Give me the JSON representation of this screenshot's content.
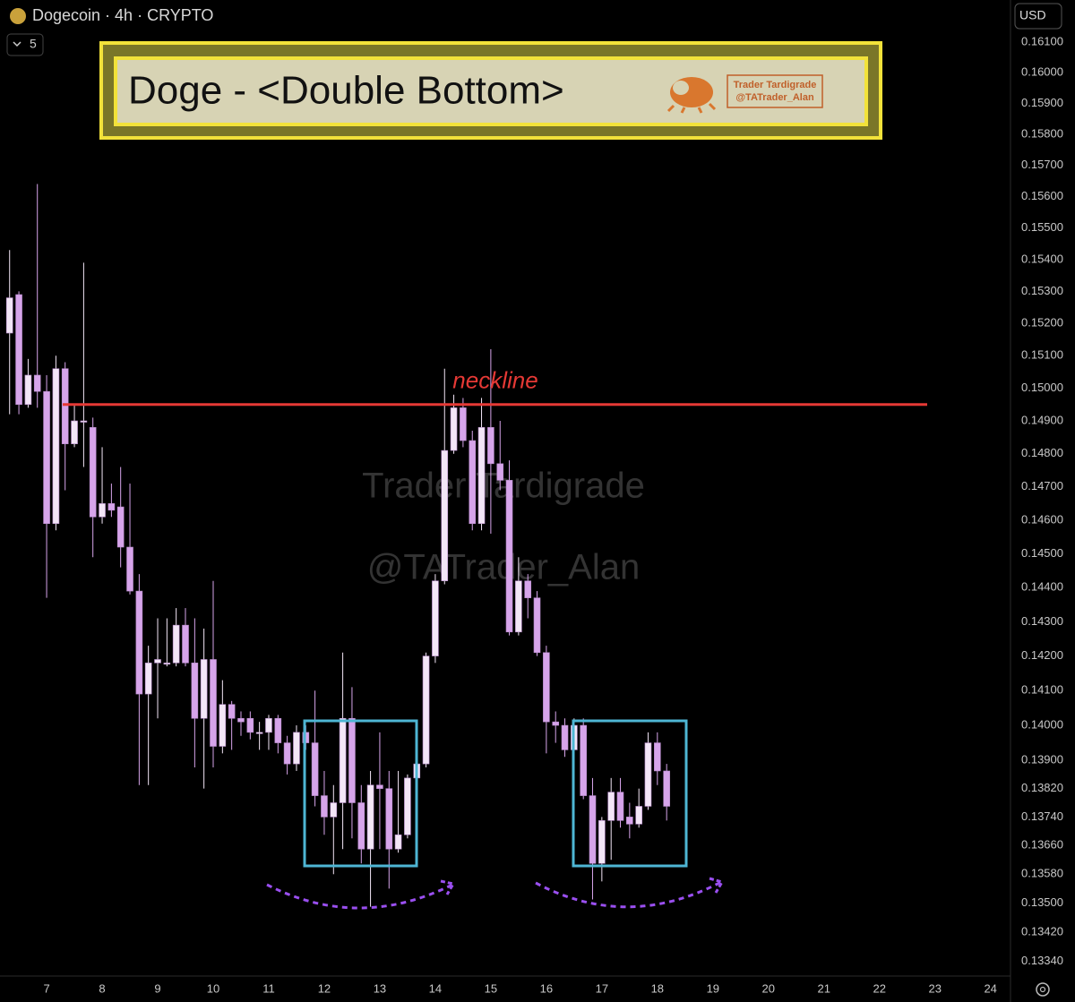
{
  "toolbar": {
    "symbol_line": "Dogecoin · 4h · CRYPTO",
    "indicators": 5,
    "currency": "USD"
  },
  "chart_data": {
    "type": "candlestick",
    "title": "Doge - <Double Bottom>",
    "watermark": [
      "Trader Tardigrade",
      "@TATrader_Alan"
    ],
    "annotations": [
      {
        "text": "neckline",
        "value": 0.1495,
        "color": "#e53935"
      }
    ],
    "log_scale": true,
    "grid": false,
    "up_color": "#f3e6f7",
    "down_color": "#d6a4ea",
    "x": [
      6.333,
      6.5,
      6.667,
      6.833,
      7,
      7.167,
      7.333,
      7.5,
      7.667,
      7.833,
      8,
      8.167,
      8.333,
      8.5,
      8.667,
      8.833,
      9,
      9.167,
      9.333,
      9.5,
      9.667,
      9.833,
      10,
      10.167,
      10.333,
      10.5,
      10.667,
      10.833,
      11,
      11.167,
      11.333,
      11.5,
      11.667,
      11.833,
      12,
      12.167,
      12.333,
      12.5,
      12.667,
      12.833,
      13,
      13.167,
      13.333,
      13.5,
      13.667,
      13.833,
      14,
      14.167,
      14.333,
      14.5,
      14.667,
      14.833,
      15,
      15.167,
      15.333,
      15.5,
      15.667,
      15.833,
      16,
      16.167,
      16.333,
      16.5,
      16.667,
      16.833,
      17,
      17.167,
      17.333,
      17.5,
      17.667,
      17.833,
      18,
      18.167
    ],
    "open": [
      0.1517,
      0.1529,
      0.1495,
      0.1504,
      0.1499,
      0.1459,
      0.1506,
      0.1483,
      0.149,
      0.1488,
      0.1461,
      0.1465,
      0.1464,
      0.1452,
      0.1439,
      0.1409,
      0.1418,
      0.1418,
      0.1418,
      0.1429,
      0.1418,
      0.1402,
      0.1419,
      0.1394,
      0.1406,
      0.1402,
      0.1402,
      0.1398,
      0.1398,
      0.1402,
      0.1395,
      0.1389,
      0.1398,
      0.1395,
      0.138,
      0.1374,
      0.1378,
      0.1402,
      0.1378,
      0.1365,
      0.1383,
      0.1382,
      0.1365,
      0.1369,
      0.1385,
      0.1389,
      0.142,
      0.1442,
      0.1481,
      0.1494,
      0.1484,
      0.1459,
      0.1488,
      0.1477,
      0.1472,
      0.1427,
      0.1442,
      0.1437,
      0.1421,
      0.1401,
      0.14,
      0.1393,
      0.14,
      0.138,
      0.1361,
      0.1373,
      0.1381,
      0.1374,
      0.1372,
      0.1377,
      0.1395,
      0.1387
    ],
    "high": [
      0.1543,
      0.153,
      0.1509,
      0.1564,
      0.1504,
      0.151,
      0.1508,
      0.1495,
      0.1539,
      0.1491,
      0.1482,
      0.1471,
      0.1476,
      0.1471,
      0.1444,
      0.1423,
      0.1431,
      0.1431,
      0.1434,
      0.1434,
      0.1431,
      0.1428,
      0.1442,
      0.1413,
      0.1407,
      0.1404,
      0.1404,
      0.1401,
      0.1403,
      0.1403,
      0.1397,
      0.14,
      0.14,
      0.141,
      0.1387,
      0.1383,
      0.1421,
      0.1411,
      0.1383,
      0.1387,
      0.1398,
      0.1387,
      0.1387,
      0.1386,
      0.1396,
      0.1421,
      0.1444,
      0.1506,
      0.1498,
      0.1497,
      0.1487,
      0.1497,
      0.1512,
      0.149,
      0.1478,
      0.1449,
      0.1444,
      0.1439,
      0.1423,
      0.1404,
      0.1402,
      0.1402,
      0.1402,
      0.1385,
      0.1374,
      0.1385,
      0.1385,
      0.1378,
      0.1382,
      0.1398,
      0.1398,
      0.1389
    ],
    "low": [
      0.1492,
      0.1492,
      0.1494,
      0.1494,
      0.1437,
      0.1457,
      0.1469,
      0.1482,
      0.1476,
      0.1449,
      0.1459,
      0.1461,
      0.1446,
      0.1438,
      0.1383,
      0.1383,
      0.1402,
      0.1417,
      0.1417,
      0.1417,
      0.1388,
      0.1382,
      0.1388,
      0.1392,
      0.1393,
      0.1397,
      0.1396,
      0.1393,
      0.1393,
      0.1392,
      0.1386,
      0.1387,
      0.1393,
      0.1377,
      0.1369,
      0.1358,
      0.1365,
      0.1368,
      0.1361,
      0.1349,
      0.1365,
      0.1354,
      0.1364,
      0.1368,
      0.1384,
      0.1388,
      0.1418,
      0.1441,
      0.148,
      0.1482,
      0.1457,
      0.1457,
      0.1456,
      0.1469,
      0.1426,
      0.1426,
      0.1431,
      0.142,
      0.1392,
      0.1395,
      0.1391,
      0.1392,
      0.1379,
      0.1351,
      0.1356,
      0.1362,
      0.1371,
      0.1368,
      0.1371,
      0.1376,
      0.1383,
      0.1373
    ],
    "close": [
      0.1528,
      0.1495,
      0.1504,
      0.1499,
      0.1459,
      0.1506,
      0.1483,
      0.149,
      0.149,
      0.1461,
      0.1465,
      0.1463,
      0.1452,
      0.1439,
      0.1409,
      0.1418,
      0.1419,
      0.1418,
      0.1429,
      0.1418,
      0.1402,
      0.1419,
      0.1394,
      0.1406,
      0.1402,
      0.1401,
      0.1398,
      0.1398,
      0.1402,
      0.1395,
      0.1389,
      0.1398,
      0.1395,
      0.138,
      0.1374,
      0.1378,
      0.1402,
      0.1378,
      0.1365,
      0.1383,
      0.1382,
      0.1365,
      0.1369,
      0.1385,
      0.1389,
      0.142,
      0.1442,
      0.1481,
      0.1494,
      0.1484,
      0.1459,
      0.1488,
      0.1477,
      0.1472,
      0.1427,
      0.1442,
      0.1437,
      0.1421,
      0.1401,
      0.14,
      0.1393,
      0.14,
      0.138,
      0.1361,
      0.1373,
      0.1381,
      0.1373,
      0.1372,
      0.1377,
      0.1395,
      0.1387,
      0.1377
    ],
    "xlim": [
      6.16,
      24.36
    ],
    "xticks": [
      7,
      8,
      9,
      10,
      11,
      12,
      13,
      14,
      15,
      16,
      17,
      18,
      19,
      20,
      21,
      22,
      23,
      24
    ],
    "ylim": [
      0.133,
      0.1624
    ],
    "yticks": [
      {
        "value": 0.161,
        "label": "0.16100"
      },
      {
        "value": 0.16,
        "label": "0.16000"
      },
      {
        "value": 0.159,
        "label": "0.15900"
      },
      {
        "value": 0.158,
        "label": "0.15800"
      },
      {
        "value": 0.157,
        "label": "0.15700"
      },
      {
        "value": 0.156,
        "label": "0.15600"
      },
      {
        "value": 0.155,
        "label": "0.15500"
      },
      {
        "value": 0.154,
        "label": "0.15400"
      },
      {
        "value": 0.153,
        "label": "0.15300"
      },
      {
        "value": 0.152,
        "label": "0.15200"
      },
      {
        "value": 0.151,
        "label": "0.15100"
      },
      {
        "value": 0.15,
        "label": "0.15000"
      },
      {
        "value": 0.149,
        "label": "0.14900"
      },
      {
        "value": 0.148,
        "label": "0.14800"
      },
      {
        "value": 0.147,
        "label": "0.14700"
      },
      {
        "value": 0.146,
        "label": "0.14600"
      },
      {
        "value": 0.145,
        "label": "0.14500"
      },
      {
        "value": 0.144,
        "label": "0.14400"
      },
      {
        "value": 0.143,
        "label": "0.14300"
      },
      {
        "value": 0.142,
        "label": "0.14200"
      },
      {
        "value": 0.141,
        "label": "0.14100"
      },
      {
        "value": 0.14,
        "label": "0.14000"
      },
      {
        "value": 0.139,
        "label": "0.13900"
      },
      {
        "value": 0.1382,
        "label": "0.13820"
      },
      {
        "value": 0.1374,
        "label": "0.13740"
      },
      {
        "value": 0.1366,
        "label": "0.13660"
      },
      {
        "value": 0.1358,
        "label": "0.13580"
      },
      {
        "value": 0.135,
        "label": "0.13500"
      },
      {
        "value": 0.1342,
        "label": "0.13420"
      },
      {
        "value": 0.1334,
        "label": "0.13340"
      }
    ]
  }
}
